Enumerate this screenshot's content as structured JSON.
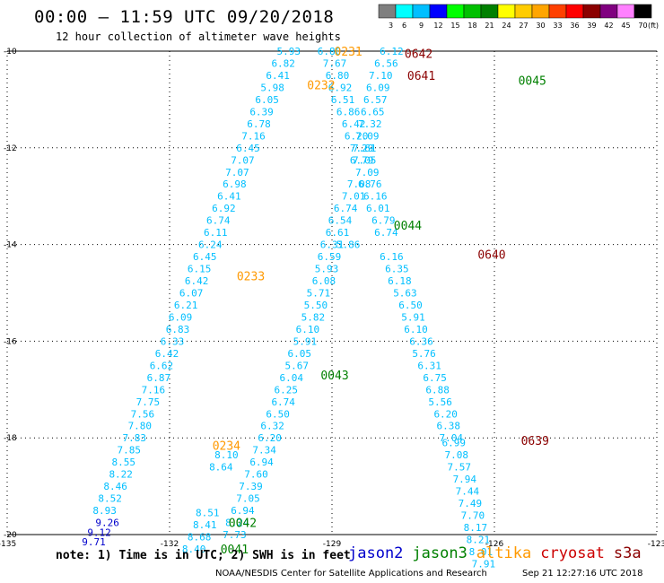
{
  "header": {
    "title": "00:00 – 11:59 UTC 09/20/2018",
    "subtitle": "12 hour collection of altimeter wave heights"
  },
  "colorbar": {
    "unit": "(ft)",
    "ticks": [
      "3",
      "6",
      "9",
      "12",
      "15",
      "18",
      "21",
      "24",
      "27",
      "30",
      "33",
      "36",
      "39",
      "42",
      "45",
      "70"
    ],
    "colors": [
      "#7f7f7f",
      "#00ffff",
      "#00bfff",
      "#0000ff",
      "#00ff00",
      "#00c000",
      "#008000",
      "#ffff00",
      "#ffcc00",
      "#ffa500",
      "#ff4000",
      "#ff0000",
      "#8b0000",
      "#800080",
      "#ff80ff",
      "#000000"
    ]
  },
  "footer": {
    "note": "note: 1) Time is in UTC; 2) SWH is in feet",
    "satellites": [
      {
        "name": "jason2",
        "color": "#0000cc"
      },
      {
        "name": "jason3",
        "color": "#008000"
      },
      {
        "name": "altika",
        "color": "#ff9900"
      },
      {
        "name": "cryosat",
        "color": "#cc0000"
      },
      {
        "name": "s3a",
        "color": "#8b0000"
      }
    ],
    "credit": "NOAA/NESDIS Center for Satellite Applications and Research",
    "timestamp": "Sep 21 12:27:16 UTC 2018"
  },
  "chart_data": {
    "type": "scatter",
    "xlim": [
      -135,
      -123
    ],
    "ylim": [
      -20,
      -10
    ],
    "xticks": [
      -135,
      -132,
      -129,
      -126,
      -123
    ],
    "yticks": [
      -10,
      -12,
      -14,
      -16,
      -18,
      -20
    ],
    "xtick_labels": [
      "-135",
      "-132",
      "-129",
      "-126",
      "-123"
    ],
    "ytick_labels": [
      "-10",
      "-12",
      "-14",
      "-16",
      "-18",
      "-20"
    ],
    "grid": true,
    "series": [
      {
        "name": "altika",
        "color": "#00bfff",
        "points": [
          {
            "x": -129.8,
            "y": -10.0,
            "v": "5.93"
          },
          {
            "x": -129.9,
            "y": -10.25,
            "v": "6.82"
          },
          {
            "x": -130.0,
            "y": -10.5,
            "v": "6.41"
          },
          {
            "x": -130.1,
            "y": -10.75,
            "v": "5.98"
          },
          {
            "x": -130.2,
            "y": -11.0,
            "v": "6.05"
          },
          {
            "x": -130.3,
            "y": -11.25,
            "v": "6.39"
          },
          {
            "x": -130.35,
            "y": -11.5,
            "v": "6.78"
          },
          {
            "x": -130.45,
            "y": -11.75,
            "v": "7.16"
          },
          {
            "x": -130.55,
            "y": -12.0,
            "v": "6.45"
          },
          {
            "x": -130.65,
            "y": -12.25,
            "v": "7.07"
          },
          {
            "x": -130.75,
            "y": -12.5,
            "v": "7.07"
          },
          {
            "x": -130.8,
            "y": -12.75,
            "v": "6.98"
          },
          {
            "x": -130.9,
            "y": -13.0,
            "v": "6.41"
          },
          {
            "x": -131.0,
            "y": -13.25,
            "v": "6.92"
          },
          {
            "x": -131.1,
            "y": -13.5,
            "v": "6.74"
          },
          {
            "x": -131.15,
            "y": -13.75,
            "v": "6.11"
          },
          {
            "x": -131.25,
            "y": -14.0,
            "v": "6.24"
          },
          {
            "x": -131.35,
            "y": -14.25,
            "v": "6.45"
          },
          {
            "x": -131.45,
            "y": -14.5,
            "v": "6.15"
          },
          {
            "x": -131.5,
            "y": -14.75,
            "v": "6.42"
          },
          {
            "x": -131.6,
            "y": -15.0,
            "v": "6.07"
          },
          {
            "x": -131.7,
            "y": -15.25,
            "v": "6.21"
          },
          {
            "x": -131.8,
            "y": -15.5,
            "v": "6.09"
          },
          {
            "x": -131.85,
            "y": -15.75,
            "v": "6.83"
          },
          {
            "x": -131.95,
            "y": -16.0,
            "v": "6.33"
          },
          {
            "x": -132.05,
            "y": -16.25,
            "v": "6.42"
          },
          {
            "x": -132.15,
            "y": -16.5,
            "v": "6.62"
          },
          {
            "x": -132.2,
            "y": -16.75,
            "v": "6.87"
          },
          {
            "x": -132.3,
            "y": -17.0,
            "v": "7.16"
          },
          {
            "x": -132.4,
            "y": -17.25,
            "v": "7.75"
          },
          {
            "x": -132.5,
            "y": -17.5,
            "v": "7.56"
          },
          {
            "x": -132.55,
            "y": -17.75,
            "v": "7.80"
          },
          {
            "x": -132.65,
            "y": -18.0,
            "v": "7.83"
          },
          {
            "x": -132.75,
            "y": -18.25,
            "v": "7.85"
          },
          {
            "x": -132.85,
            "y": -18.5,
            "v": "8.55"
          },
          {
            "x": -132.9,
            "y": -18.75,
            "v": "8.22"
          },
          {
            "x": -133.0,
            "y": -19.0,
            "v": "8.46"
          },
          {
            "x": -133.1,
            "y": -19.25,
            "v": "8.52"
          },
          {
            "x": -133.2,
            "y": -19.5,
            "v": "8.93"
          },
          {
            "x": -129.05,
            "y": -10.0,
            "v": "6.80"
          },
          {
            "x": -128.95,
            "y": -10.25,
            "v": "7.67"
          },
          {
            "x": -128.9,
            "y": -10.5,
            "v": "6.80"
          },
          {
            "x": -128.85,
            "y": -10.75,
            "v": "6.92"
          },
          {
            "x": -128.8,
            "y": -11.0,
            "v": "6.51"
          },
          {
            "x": -128.7,
            "y": -11.25,
            "v": "6.86"
          },
          {
            "x": -128.6,
            "y": -11.5,
            "v": "6.42"
          },
          {
            "x": -128.55,
            "y": -11.75,
            "v": "6.20"
          },
          {
            "x": -128.45,
            "y": -12.0,
            "v": "7.29"
          },
          {
            "x": -128.4,
            "y": -12.25,
            "v": "7.05"
          },
          {
            "x": -128.35,
            "y": -12.5,
            "v": "7.09"
          },
          {
            "x": -128.5,
            "y": -12.75,
            "v": "7.08"
          },
          {
            "x": -128.6,
            "y": -13.0,
            "v": "7.01"
          },
          {
            "x": -128.75,
            "y": -13.25,
            "v": "6.74"
          },
          {
            "x": -128.85,
            "y": -13.5,
            "v": "6.54"
          },
          {
            "x": -128.9,
            "y": -13.75,
            "v": "6.61"
          },
          {
            "x": -128.7,
            "y": -14.0,
            "v": "5.86"
          },
          {
            "x": -129.0,
            "y": -14.0,
            "v": "6.31"
          },
          {
            "x": -129.05,
            "y": -14.25,
            "v": "6.59"
          },
          {
            "x": -129.1,
            "y": -14.5,
            "v": "5.93"
          },
          {
            "x": -129.15,
            "y": -14.75,
            "v": "6.08"
          },
          {
            "x": -129.25,
            "y": -15.0,
            "v": "5.71"
          },
          {
            "x": -129.3,
            "y": -15.25,
            "v": "5.50"
          },
          {
            "x": -129.35,
            "y": -15.5,
            "v": "5.82"
          },
          {
            "x": -129.45,
            "y": -15.75,
            "v": "6.10"
          },
          {
            "x": -129.5,
            "y": -16.0,
            "v": "5.91"
          },
          {
            "x": -129.6,
            "y": -16.25,
            "v": "6.05"
          },
          {
            "x": -129.65,
            "y": -16.5,
            "v": "5.67"
          },
          {
            "x": -129.75,
            "y": -16.75,
            "v": "6.04"
          },
          {
            "x": -129.85,
            "y": -17.0,
            "v": "6.25"
          },
          {
            "x": -129.9,
            "y": -17.25,
            "v": "6.74"
          },
          {
            "x": -130.0,
            "y": -17.5,
            "v": "6.50"
          },
          {
            "x": -130.1,
            "y": -17.75,
            "v": "6.32"
          },
          {
            "x": -130.15,
            "y": -18.0,
            "v": "6.20"
          },
          {
            "x": -130.25,
            "y": -18.25,
            "v": "7.34"
          },
          {
            "x": -130.3,
            "y": -18.5,
            "v": "6.94"
          },
          {
            "x": -130.4,
            "y": -18.75,
            "v": "7.60"
          },
          {
            "x": -130.5,
            "y": -19.0,
            "v": "7.39"
          },
          {
            "x": -130.55,
            "y": -19.25,
            "v": "7.05"
          },
          {
            "x": -130.65,
            "y": -19.5,
            "v": "6.94"
          },
          {
            "x": -130.75,
            "y": -19.75,
            "v": "8.24"
          },
          {
            "x": -130.8,
            "y": -20.0,
            "v": "7.73"
          },
          {
            "x": -127.9,
            "y": -10.0,
            "v": "6.12"
          },
          {
            "x": -128.0,
            "y": -10.25,
            "v": "6.56"
          },
          {
            "x": -128.1,
            "y": -10.5,
            "v": "7.10"
          },
          {
            "x": -128.15,
            "y": -10.75,
            "v": "6.09"
          },
          {
            "x": -128.2,
            "y": -11.0,
            "v": "6.57"
          },
          {
            "x": -128.25,
            "y": -11.25,
            "v": "6.65"
          },
          {
            "x": -128.3,
            "y": -11.5,
            "v": "7.32"
          },
          {
            "x": -128.35,
            "y": -11.75,
            "v": "7.09"
          },
          {
            "x": -128.4,
            "y": -12.0,
            "v": "7.61"
          },
          {
            "x": -128.45,
            "y": -12.25,
            "v": "6.79"
          },
          {
            "x": -128.3,
            "y": -12.75,
            "v": "6.76"
          },
          {
            "x": -128.2,
            "y": -13.0,
            "v": "6.16"
          },
          {
            "x": -128.15,
            "y": -13.25,
            "v": "6.01"
          },
          {
            "x": -128.05,
            "y": -13.5,
            "v": "6.79"
          },
          {
            "x": -128.0,
            "y": -13.75,
            "v": "6.74"
          },
          {
            "x": -127.9,
            "y": -14.25,
            "v": "6.16"
          },
          {
            "x": -127.8,
            "y": -14.5,
            "v": "6.35"
          },
          {
            "x": -127.75,
            "y": -14.75,
            "v": "6.18"
          },
          {
            "x": -127.65,
            "y": -15.0,
            "v": "5.63"
          },
          {
            "x": -127.55,
            "y": -15.25,
            "v": "6.50"
          },
          {
            "x": -127.5,
            "y": -15.5,
            "v": "5.91"
          },
          {
            "x": -127.45,
            "y": -15.75,
            "v": "6.10"
          },
          {
            "x": -127.35,
            "y": -16.0,
            "v": "6.36"
          },
          {
            "x": -127.3,
            "y": -16.25,
            "v": "5.76"
          },
          {
            "x": -127.2,
            "y": -16.5,
            "v": "6.31"
          },
          {
            "x": -127.1,
            "y": -16.75,
            "v": "6.75"
          },
          {
            "x": -127.05,
            "y": -17.0,
            "v": "6.88"
          },
          {
            "x": -127.0,
            "y": -17.25,
            "v": "5.56"
          },
          {
            "x": -126.9,
            "y": -17.5,
            "v": "6.20"
          },
          {
            "x": -126.85,
            "y": -17.75,
            "v": "6.38"
          },
          {
            "x": -126.8,
            "y": -18.0,
            "v": "7.04"
          },
          {
            "x": -126.75,
            "y": -18.1,
            "v": "6.99"
          },
          {
            "x": -126.7,
            "y": -18.35,
            "v": "7.08"
          },
          {
            "x": -126.65,
            "y": -18.6,
            "v": "7.57"
          },
          {
            "x": -126.55,
            "y": -18.85,
            "v": "7.94"
          },
          {
            "x": -126.5,
            "y": -19.1,
            "v": "7.44"
          },
          {
            "x": -126.45,
            "y": -19.35,
            "v": "7.49"
          },
          {
            "x": -126.4,
            "y": -19.6,
            "v": "7.70"
          },
          {
            "x": -126.35,
            "y": -19.85,
            "v": "8.17"
          },
          {
            "x": -126.3,
            "y": -20.1,
            "v": "8.21"
          },
          {
            "x": -126.25,
            "y": -20.35,
            "v": "8.01"
          },
          {
            "x": -126.2,
            "y": -20.6,
            "v": "7.91"
          }
        ]
      },
      {
        "name": "jason2",
        "color": "#0000cc",
        "points": [
          {
            "x": -133.15,
            "y": -19.75,
            "v": "9.26"
          },
          {
            "x": -133.3,
            "y": -19.95,
            "v": "9.12"
          },
          {
            "x": -133.4,
            "y": -20.15,
            "v": "9.71"
          }
        ]
      }
    ],
    "extra_points": [
      {
        "x": -131.3,
        "y": -19.55,
        "v": "8.51",
        "color": "#00bfff"
      },
      {
        "x": -131.35,
        "y": -19.8,
        "v": "8.41",
        "color": "#00bfff"
      },
      {
        "x": -131.45,
        "y": -20.05,
        "v": "8.68",
        "color": "#00bfff"
      },
      {
        "x": -131.55,
        "y": -20.3,
        "v": "8.40",
        "color": "#00bfff"
      },
      {
        "x": -130.95,
        "y": -18.35,
        "v": "8.10",
        "color": "#00bfff"
      },
      {
        "x": -131.05,
        "y": -18.6,
        "v": "8.64",
        "color": "#00bfff"
      }
    ],
    "time_labels": [
      {
        "x": -128.7,
        "y": -10.0,
        "t": "0231",
        "color": "#ff9900"
      },
      {
        "x": -127.4,
        "y": -10.05,
        "t": "0642",
        "color": "#8b0000"
      },
      {
        "x": -127.35,
        "y": -10.5,
        "t": "0641",
        "color": "#8b0000"
      },
      {
        "x": -125.3,
        "y": -10.6,
        "t": "0045",
        "color": "#008000"
      },
      {
        "x": -129.2,
        "y": -10.7,
        "t": "0232",
        "color": "#ff9900"
      },
      {
        "x": -127.6,
        "y": -13.6,
        "t": "0044",
        "color": "#008000"
      },
      {
        "x": -126.05,
        "y": -14.2,
        "t": "0640",
        "color": "#8b0000"
      },
      {
        "x": -130.5,
        "y": -14.65,
        "t": "0233",
        "color": "#ff9900"
      },
      {
        "x": -128.95,
        "y": -16.7,
        "t": "0043",
        "color": "#008000"
      },
      {
        "x": -125.25,
        "y": -18.05,
        "t": "0639",
        "color": "#8b0000"
      },
      {
        "x": -130.95,
        "y": -18.15,
        "t": "0234",
        "color": "#ff9900"
      },
      {
        "x": -130.65,
        "y": -19.75,
        "t": "0042",
        "color": "#008000"
      },
      {
        "x": -130.8,
        "y": -20.3,
        "t": "0041",
        "color": "#008000"
      }
    ]
  }
}
